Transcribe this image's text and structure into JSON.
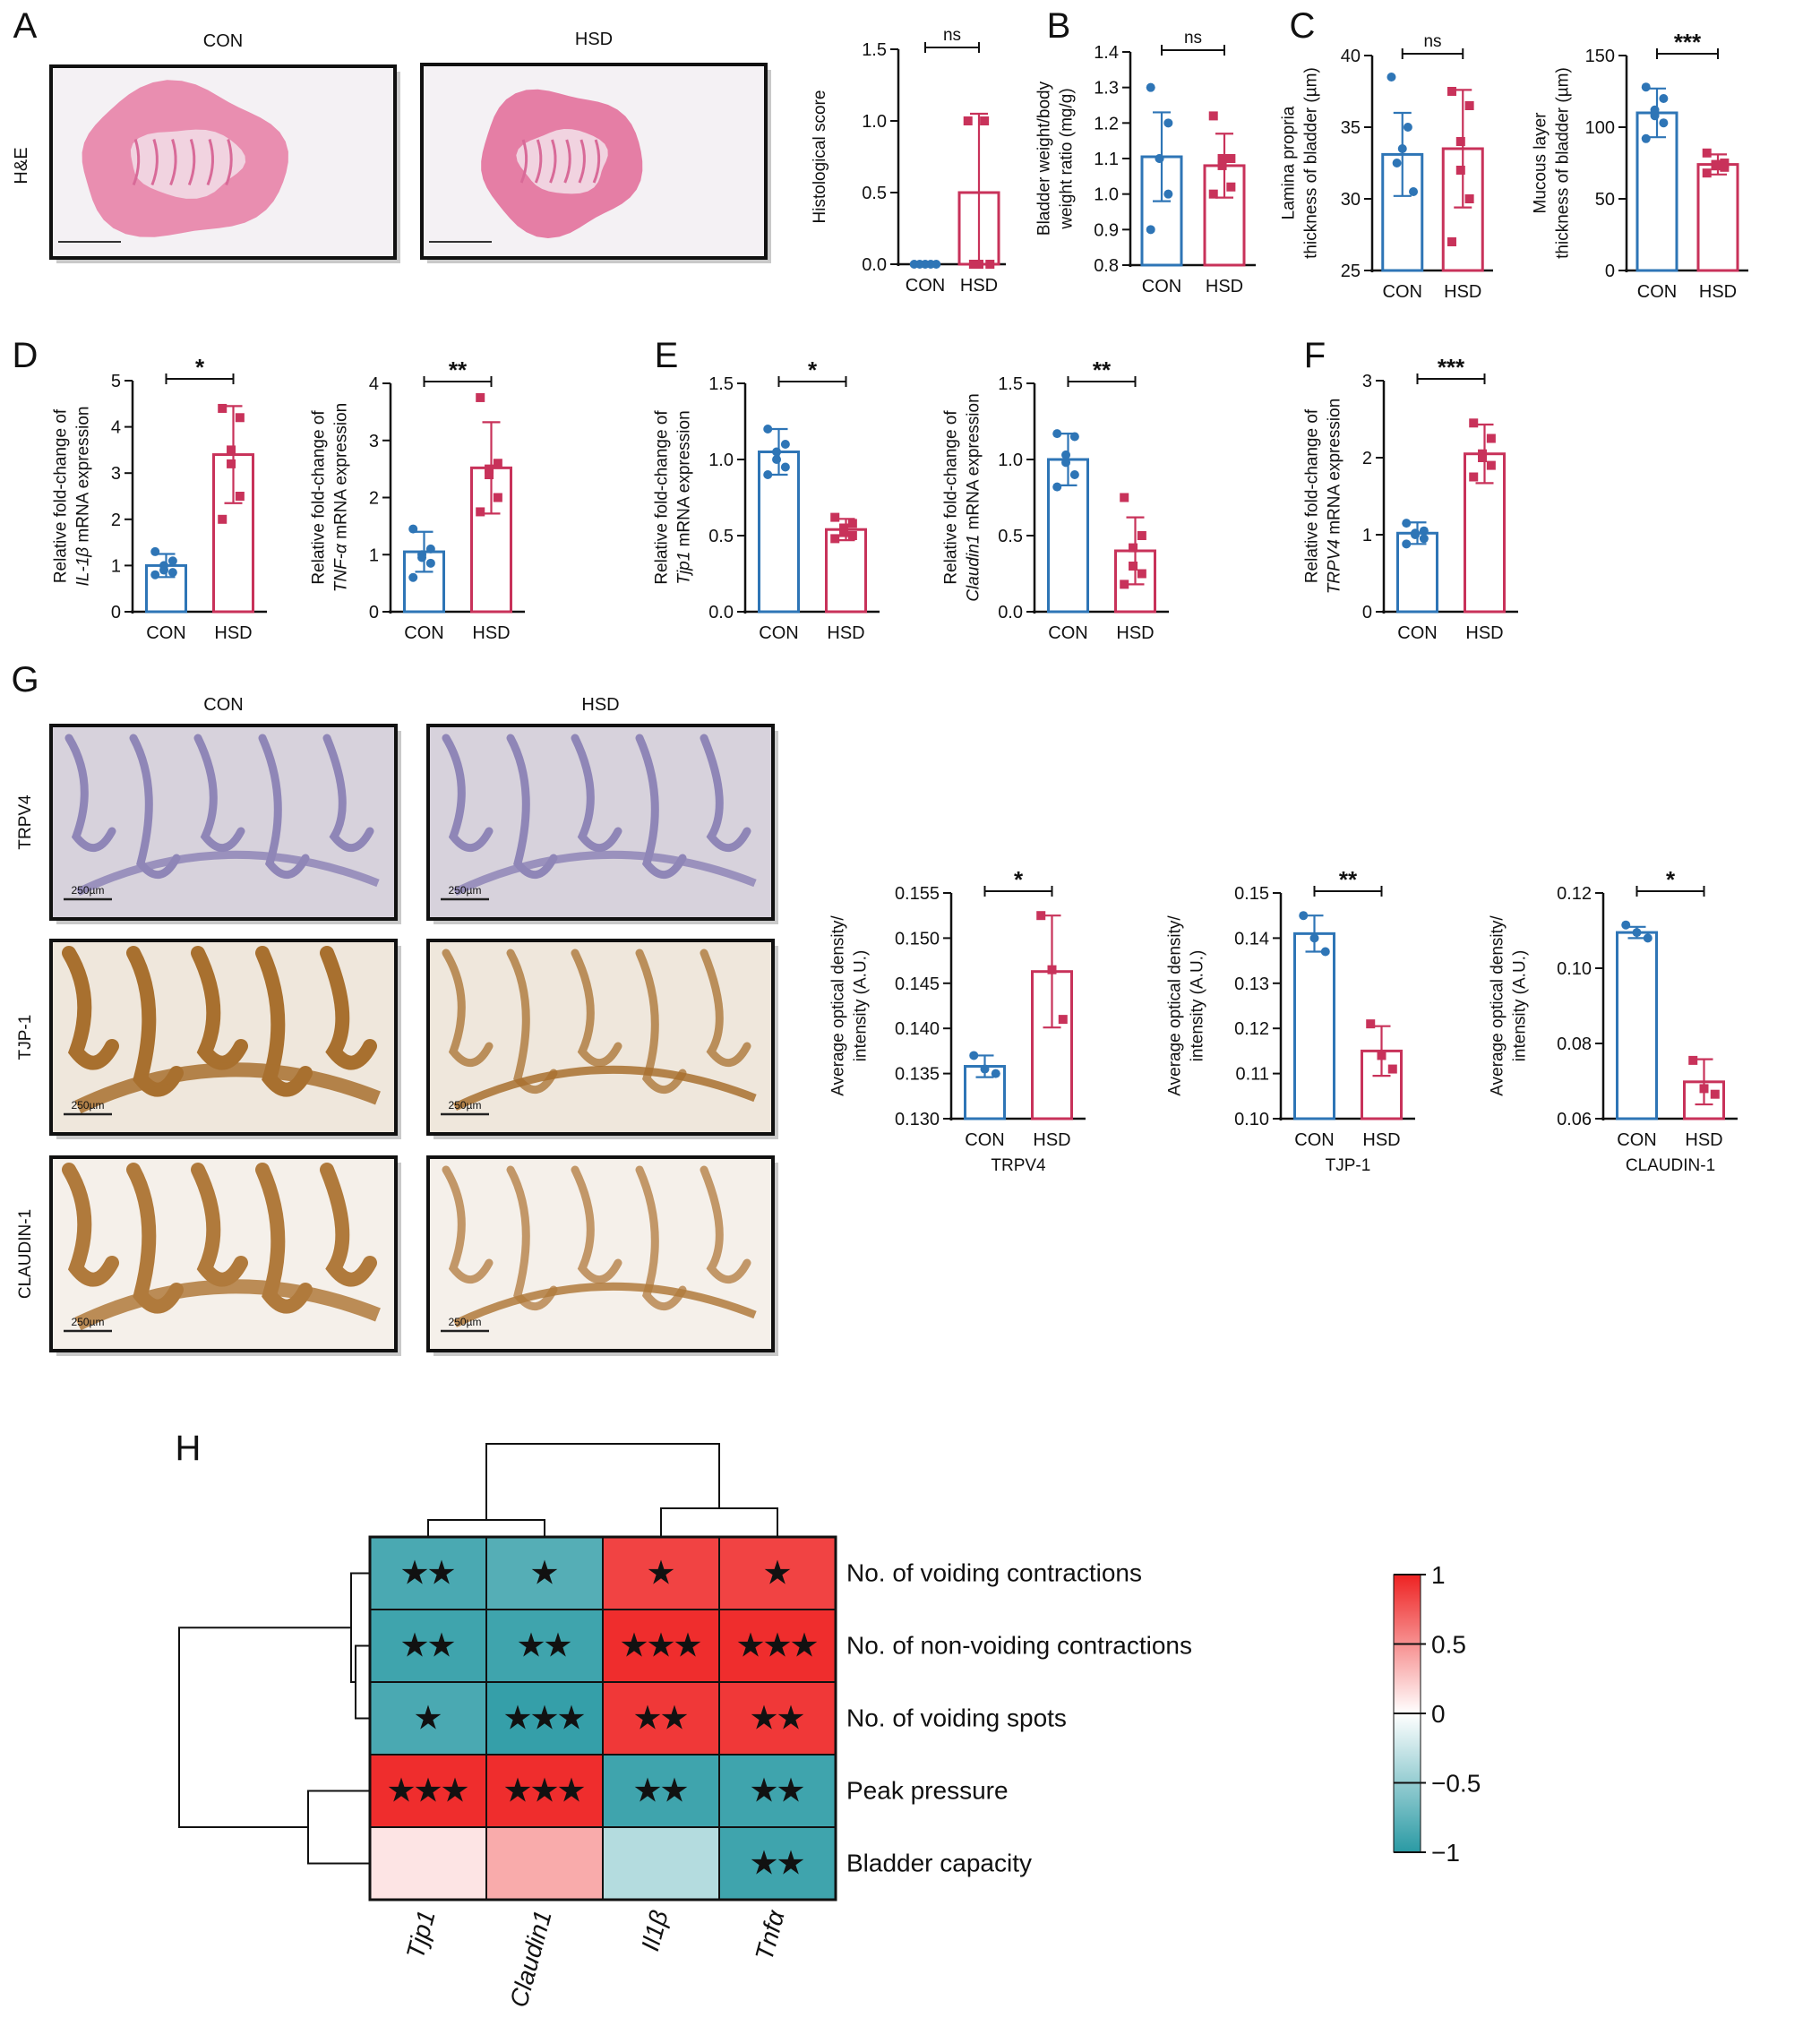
{
  "panel_letters": [
    "A",
    "B",
    "C",
    "D",
    "E",
    "F",
    "G",
    "H"
  ],
  "group_labels": {
    "con": "CON",
    "hsd": "HSD"
  },
  "colors": {
    "con": "#2e75b6",
    "hsd": "#c8325a",
    "heat_pos": "#ee2222",
    "heat_neg": "#2a9aa4",
    "heat_zero": "#ffffff"
  },
  "panelA": {
    "stain_label": "H&E",
    "images": [
      {
        "label": "CON",
        "tissue_color": "#e98eb0",
        "background": "#f4f1f4"
      },
      {
        "label": "HSD",
        "tissue_color": "#e57ea5",
        "background": "#f4f1f4"
      }
    ]
  },
  "panelG": {
    "columns": [
      "CON",
      "HSD"
    ],
    "rows": [
      {
        "label": "TRPV4",
        "scale_bar": "250µm",
        "tissue_color": "#8f86b7",
        "background": "#d7d2dc"
      },
      {
        "label": "TJP-1",
        "scale_bar": "250µm",
        "tissue_color": "#a8702f",
        "background": "#efe7dc"
      },
      {
        "label": "CLAUDIN-1",
        "scale_bar": "250µm",
        "tissue_color": "#b07a3c",
        "background": "#f5f0ea"
      }
    ]
  },
  "chart_data": [
    {
      "id": "A-hist",
      "type": "bar",
      "title": "",
      "xlabel": "",
      "ylabel": "Histological score",
      "categories": [
        "CON",
        "HSD"
      ],
      "means": [
        0.0,
        0.5
      ],
      "sd": [
        0.0,
        0.55
      ],
      "points": [
        [
          0,
          0,
          0,
          0,
          0
        ],
        [
          1,
          1,
          0,
          0,
          0
        ]
      ],
      "ylim": [
        0,
        1.5
      ],
      "yticks": [
        "0.0",
        "0.5",
        "1.0",
        "1.5"
      ],
      "significance": "ns"
    },
    {
      "id": "B",
      "type": "bar",
      "title": "",
      "xlabel": "",
      "ylabel": "Bladder weight/body weight ratio (mg/g)",
      "categories": [
        "CON",
        "HSD"
      ],
      "means": [
        1.105,
        1.08
      ],
      "sd": [
        0.125,
        0.09
      ],
      "points": [
        [
          1.3,
          1.2,
          1.1,
          1.1,
          1.0,
          0.9
        ],
        [
          1.22,
          1.1,
          1.08,
          1.1,
          1.02,
          1.0
        ]
      ],
      "ylim": [
        0.8,
        1.4
      ],
      "yticks": [
        "0.8",
        "0.9",
        "1.0",
        "1.1",
        "1.2",
        "1.3",
        "1.4"
      ],
      "significance": "ns"
    },
    {
      "id": "C-lamina",
      "type": "bar",
      "title": "",
      "xlabel": "",
      "ylabel": "Lamina propria thickness of bladder (µm)",
      "categories": [
        "CON",
        "HSD"
      ],
      "means": [
        33.1,
        33.5
      ],
      "sd": [
        2.9,
        4.1
      ],
      "points": [
        [
          38.5,
          35,
          33.5,
          32.5,
          30.5
        ],
        [
          37.5,
          36.5,
          34,
          32,
          30,
          27
        ]
      ],
      "ylim": [
        25,
        40
      ],
      "yticks": [
        "25",
        "30",
        "35",
        "40"
      ],
      "significance": "ns"
    },
    {
      "id": "C-mucous",
      "type": "bar",
      "title": "",
      "xlabel": "",
      "ylabel": "Mucous layer thickness of bladder (µm)",
      "categories": [
        "CON",
        "HSD"
      ],
      "means": [
        110,
        74
      ],
      "sd": [
        17,
        7
      ],
      "points": [
        [
          128,
          120,
          112,
          108,
          103,
          92
        ],
        [
          82,
          75,
          74,
          73,
          72,
          68
        ]
      ],
      "ylim": [
        0,
        150
      ],
      "yticks": [
        "0",
        "50",
        "100",
        "150"
      ],
      "significance": "***"
    },
    {
      "id": "D-il1b",
      "type": "bar",
      "title": "",
      "xlabel": "",
      "ylabel": "Relative fold-change of IL-1β mRNA expression",
      "categories": [
        "CON",
        "HSD"
      ],
      "means": [
        1.0,
        3.4
      ],
      "sd": [
        0.25,
        1.05
      ],
      "points": [
        [
          1.3,
          1.1,
          1.0,
          0.9,
          0.85,
          0.8
        ],
        [
          4.4,
          4.2,
          3.5,
          3.2,
          2.5,
          2.0
        ]
      ],
      "ylim": [
        0,
        5
      ],
      "yticks": [
        "0",
        "1",
        "2",
        "3",
        "4",
        "5"
      ],
      "significance": "*"
    },
    {
      "id": "D-tnfa",
      "type": "bar",
      "title": "",
      "xlabel": "",
      "ylabel": "Relative fold-change of TNF-α mRNA expression",
      "categories": [
        "CON",
        "HSD"
      ],
      "means": [
        1.05,
        2.52
      ],
      "sd": [
        0.35,
        0.8
      ],
      "points": [
        [
          1.45,
          1.1,
          1.0,
          0.95,
          0.85,
          0.6
        ],
        [
          3.75,
          2.6,
          2.5,
          2.4,
          2.0,
          1.75
        ]
      ],
      "ylim": [
        0,
        4
      ],
      "yticks": [
        "0",
        "1",
        "2",
        "3",
        "4"
      ],
      "significance": "**"
    },
    {
      "id": "E-tjp1",
      "type": "bar",
      "title": "",
      "xlabel": "",
      "ylabel": "Relative fold-change of Tjp1 mRNA expression",
      "categories": [
        "CON",
        "HSD"
      ],
      "means": [
        1.05,
        0.54
      ],
      "sd": [
        0.15,
        0.07
      ],
      "points": [
        [
          1.2,
          1.1,
          1.05,
          1.0,
          0.95,
          0.9
        ],
        [
          0.62,
          0.58,
          0.55,
          0.52,
          0.5,
          0.48
        ]
      ],
      "ylim": [
        0,
        1.5
      ],
      "yticks": [
        "0.0",
        "0.5",
        "1.0",
        "1.5"
      ],
      "significance": "*"
    },
    {
      "id": "E-claudin1",
      "type": "bar",
      "title": "",
      "xlabel": "",
      "ylabel": "Relative fold-change of Claudin1 mRNA expression",
      "categories": [
        "CON",
        "HSD"
      ],
      "means": [
        1.0,
        0.4
      ],
      "sd": [
        0.17,
        0.22
      ],
      "points": [
        [
          1.17,
          1.15,
          1.03,
          0.98,
          0.9,
          0.82
        ],
        [
          0.75,
          0.5,
          0.42,
          0.3,
          0.25,
          0.18
        ]
      ],
      "ylim": [
        0,
        1.5
      ],
      "yticks": [
        "0.0",
        "0.5",
        "1.0",
        "1.5"
      ],
      "significance": "**"
    },
    {
      "id": "F-trpv4",
      "type": "bar",
      "title": "",
      "xlabel": "",
      "ylabel": "Relative fold-change of TRPV4 mRNA expression",
      "categories": [
        "CON",
        "HSD"
      ],
      "means": [
        1.02,
        2.05
      ],
      "sd": [
        0.14,
        0.38
      ],
      "points": [
        [
          1.15,
          1.05,
          1.02,
          1.0,
          0.95,
          0.88
        ],
        [
          2.45,
          2.25,
          2.05,
          2.0,
          1.9,
          1.75
        ]
      ],
      "ylim": [
        0,
        3
      ],
      "yticks": [
        "0",
        "1",
        "2",
        "3"
      ],
      "significance": "***"
    },
    {
      "id": "G-trpv4",
      "type": "bar",
      "title": "",
      "xlabel": "TRPV4",
      "ylabel": "Average optical density/ intensity (A.U.)",
      "categories": [
        "CON",
        "HSD"
      ],
      "means": [
        0.1358,
        0.1463
      ],
      "sd": [
        0.0012,
        0.0062
      ],
      "points": [
        [
          0.137,
          0.1355,
          0.135
        ],
        [
          0.1525,
          0.1465,
          0.141
        ]
      ],
      "ylim": [
        0.13,
        0.155
      ],
      "yticks": [
        "0.130",
        "0.135",
        "0.140",
        "0.145",
        "0.150",
        "0.155"
      ],
      "significance": "*"
    },
    {
      "id": "G-tjp1",
      "type": "bar",
      "title": "",
      "xlabel": "TJP-1",
      "ylabel": "Average optical density/ intensity (A.U.)",
      "categories": [
        "CON",
        "HSD"
      ],
      "means": [
        0.141,
        0.115
      ],
      "sd": [
        0.004,
        0.0055
      ],
      "points": [
        [
          0.145,
          0.14,
          0.137
        ],
        [
          0.121,
          0.114,
          0.111
        ]
      ],
      "ylim": [
        0.1,
        0.15
      ],
      "yticks": [
        "0.10",
        "0.11",
        "0.12",
        "0.13",
        "0.14",
        "0.15"
      ],
      "significance": "**"
    },
    {
      "id": "G-claudin1",
      "type": "bar",
      "title": "",
      "xlabel": "CLAUDIN-1",
      "ylabel": "Average optical density/ intensity (A.U.)",
      "categories": [
        "CON",
        "HSD"
      ],
      "means": [
        0.1095,
        0.0698
      ],
      "sd": [
        0.0015,
        0.006
      ],
      "points": [
        [
          0.1115,
          0.1095,
          0.108
        ],
        [
          0.0755,
          0.068,
          0.0665
        ]
      ],
      "ylim": [
        0.06,
        0.12
      ],
      "yticks": [
        "0.06",
        "0.08",
        "0.10",
        "0.12"
      ],
      "significance": "*"
    },
    {
      "id": "H",
      "type": "heatmap",
      "title": "",
      "columns": [
        "Tjp1",
        "Claudin1",
        "Il1β",
        "Tnfα"
      ],
      "rows": [
        "No. of voiding contractions",
        "No. of non-voiding contractions",
        "No. of voiding spots",
        "Peak pressure",
        "Bladder capacity"
      ],
      "values": [
        [
          -0.85,
          -0.8,
          0.85,
          0.85
        ],
        [
          -0.9,
          -0.9,
          0.95,
          0.95
        ],
        [
          -0.85,
          -0.95,
          0.9,
          0.9
        ],
        [
          0.95,
          0.95,
          -0.9,
          -0.9
        ],
        [
          0.12,
          0.38,
          -0.35,
          -0.9
        ]
      ],
      "stars": [
        [
          "**",
          "*",
          "*",
          "*"
        ],
        [
          "**",
          "**",
          "***",
          "***"
        ],
        [
          "*",
          "***",
          "**",
          "**"
        ],
        [
          "***",
          "***",
          "**",
          "**"
        ],
        [
          "",
          "",
          "",
          "**"
        ]
      ],
      "colorbar": {
        "range": [
          -1,
          1
        ],
        "ticks": [
          "1",
          "0.5",
          "0",
          "−0.5",
          "−1"
        ]
      }
    }
  ]
}
